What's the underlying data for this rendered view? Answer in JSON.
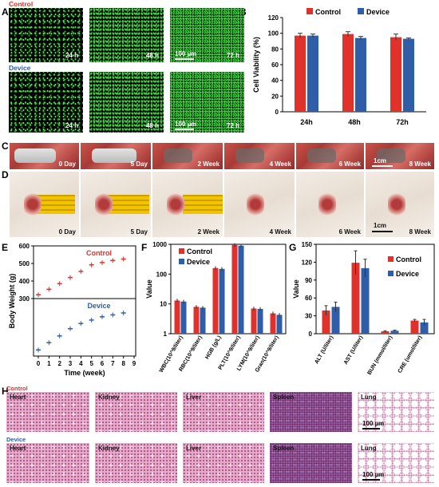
{
  "panels": {
    "A": "A",
    "B": "B",
    "C": "C",
    "D": "D",
    "E": "E",
    "F": "F",
    "G": "G",
    "H": "H"
  },
  "panelA": {
    "control_label": "Control",
    "device_label": "Device",
    "times": [
      "24 h",
      "48 h",
      "72 h"
    ],
    "scale": "100 µm"
  },
  "panelC": {
    "labels": [
      "0 Day",
      "5 Day",
      "2 Week",
      "4 Week",
      "6 Week",
      "8 Week"
    ],
    "scale": "1cm"
  },
  "panelD": {
    "labels": [
      "0 Day",
      "5 Day",
      "2 Week",
      "4 Week",
      "6 Week",
      "8 Week"
    ],
    "scale": "1cm"
  },
  "panelH": {
    "control_label": "Control",
    "device_label": "Device",
    "organs": [
      "Heart",
      "Kidney",
      "Liver",
      "Spleen",
      "Lung"
    ],
    "scale": "100 µm"
  },
  "colors": {
    "control": "#e0312b",
    "device": "#2f5da8"
  },
  "chart_data": [
    {
      "id": "B",
      "type": "bar",
      "categories": [
        "24h",
        "48h",
        "72h"
      ],
      "series": [
        {
          "name": "Control",
          "values": [
            97,
            99,
            95
          ]
        },
        {
          "name": "Device",
          "values": [
            97,
            94,
            93
          ]
        }
      ],
      "errors": [
        [
          3,
          3,
          4
        ],
        [
          2,
          2,
          1
        ]
      ],
      "ylabel": "Cell Viability (%)",
      "ylim": [
        0,
        120
      ],
      "yticks": [
        "0",
        "20",
        "40",
        "60",
        "80",
        "100",
        "120"
      ],
      "legend": "top"
    },
    {
      "id": "E",
      "type": "scatter",
      "x": [
        0,
        1,
        2,
        3,
        4,
        5,
        6,
        7,
        8
      ],
      "series": [
        {
          "name": "Control",
          "values": [
            322,
            353,
            385,
            420,
            455,
            492,
            505,
            517,
            525
          ]
        },
        {
          "name": "Device",
          "values": [
            332,
            370,
            405,
            443,
            470,
            488,
            505,
            515,
            525
          ]
        }
      ],
      "ylabel": "Body Weight (g)",
      "xlabel": "Time (week)",
      "upper_ylim": [
        300,
        600
      ],
      "upper_yticks": [
        "300",
        "400",
        "500",
        "600"
      ],
      "lower_ylim": [
        300,
        600
      ],
      "xticks": [
        "0",
        "1",
        "2",
        "3",
        "4",
        "5",
        "6",
        "7",
        "8",
        "9"
      ]
    },
    {
      "id": "F",
      "type": "bar",
      "log": true,
      "categories": [
        "WBC(10^9/liter)",
        "RBC(10^9/liter)",
        "HGB  (g/L)",
        "PLT(10^9/liter)",
        "LYM(10^9/liter)",
        "Gran(10^9/liter)"
      ],
      "series": [
        {
          "name": "Control",
          "values": [
            13,
            8,
            160,
            950,
            7,
            4.8
          ]
        },
        {
          "name": "Device",
          "values": [
            12,
            7.5,
            150,
            900,
            6.8,
            4.3
          ]
        }
      ],
      "ylabel": "Value",
      "yticks": [
        "1",
        "10",
        "100",
        "1000"
      ],
      "ylim": [
        1,
        1000
      ],
      "legend": "top"
    },
    {
      "id": "G",
      "type": "bar",
      "categories": [
        "ALT (U/liter)",
        "AST (U/liter)",
        "BUN  (mmol/liter)",
        "CRE (umol/liter)"
      ],
      "series": [
        {
          "name": "Control",
          "values": [
            39,
            119,
            4,
            22
          ]
        },
        {
          "name": "Device",
          "values": [
            45,
            110,
            5,
            19
          ]
        }
      ],
      "errors": [
        [
          8,
          20,
          1,
          2
        ],
        [
          8,
          15,
          1,
          5
        ]
      ],
      "ylabel": "Value",
      "ylim": [
        0,
        150
      ],
      "yticks": [
        "0",
        "30",
        "60",
        "90",
        "120",
        "150"
      ],
      "legend": "top"
    }
  ]
}
